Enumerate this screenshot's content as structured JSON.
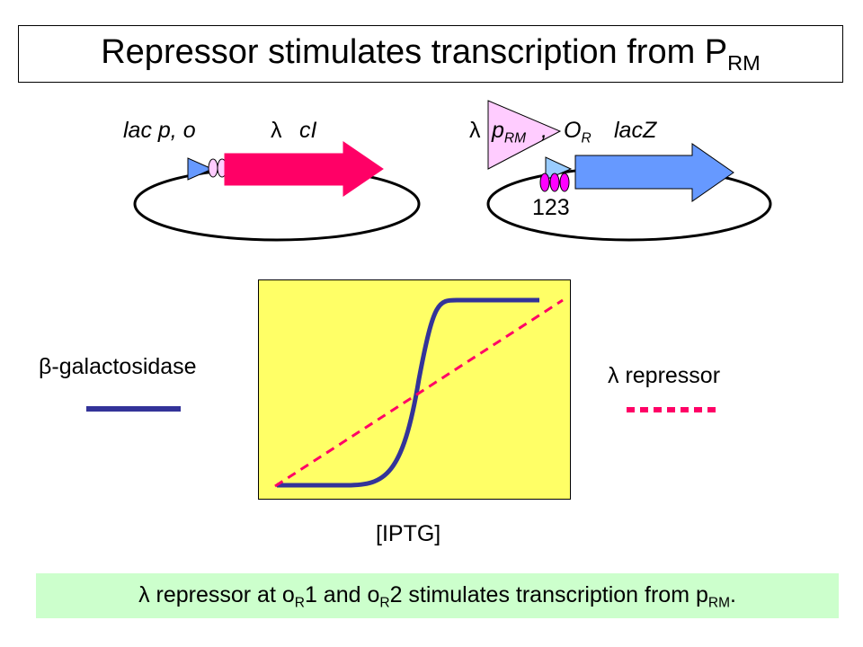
{
  "title": {
    "text": "Repressor stimulates transcription from P",
    "sub": "RM"
  },
  "plasmid_left": {
    "label_promoter": "lac p, o",
    "label_lambda": "λ",
    "label_gene": "cI"
  },
  "plasmid_right": {
    "label_lambda": "λ",
    "label_p": "p",
    "label_p_sub": "RM",
    "label_comma": ",",
    "label_o": "O",
    "label_o_sub": "R",
    "label_gene": "lacZ",
    "operator_numbers": "123"
  },
  "graph": {
    "left_label": "β-galactosidase",
    "right_label": "λ repressor",
    "xlabel": "[IPTG]"
  },
  "caption": {
    "lambda": "λ",
    "t1": " repressor at o",
    "sub1": "R",
    "t2": "1 and o",
    "sub2": "R",
    "t3": "2 stimulates transcription from p",
    "sub3": "RM",
    "t4": "."
  },
  "colors": {
    "cI_arrow": "#ff0066",
    "lacZ_arrow": "#6699ff",
    "promoter": "#6699ff",
    "lac_operator": "#ffccff",
    "pRM_triangle": "#ffccff",
    "operator_sites": "#ff00ff",
    "beta_gal_line": "#333399",
    "repressor_line": "#ff0066",
    "plot_background": "#ffff66",
    "caption_background": "#ccffcc"
  }
}
